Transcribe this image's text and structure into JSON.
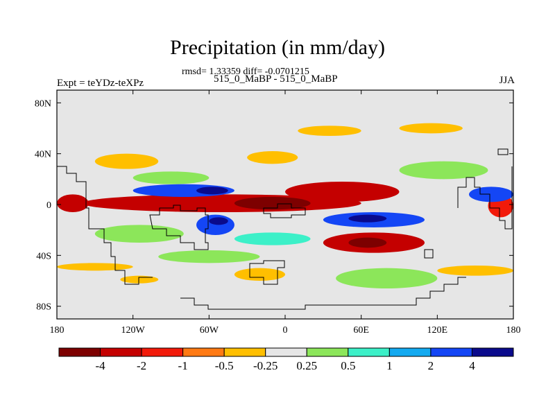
{
  "chart_data": {
    "type": "heatmap",
    "title": "Precipitation (in mm/day)",
    "stats_line": "rmsd= 1.33359 diff= -0.0701215",
    "subtitle": "515_0_MaBP - 515_0_MaBP",
    "left_label": "Expt = teYDz-teXPz",
    "right_label": "JJA",
    "x_axis": {
      "range": [
        -180,
        180
      ],
      "ticks": [
        -180,
        -120,
        -60,
        0,
        60,
        120,
        180
      ],
      "tick_labels": [
        "180",
        "120W",
        "60W",
        "0",
        "60E",
        "120E",
        "180"
      ]
    },
    "y_axis": {
      "range": [
        -90,
        90
      ],
      "ticks": [
        80,
        40,
        0,
        -40,
        -80
      ],
      "tick_labels": [
        "80N",
        "40N",
        "0",
        "40S",
        "80S"
      ]
    },
    "colorbar": {
      "labels": [
        "-4",
        "-2",
        "-1",
        "-0.5",
        "-0.25",
        "0.25",
        "0.5",
        "1",
        "2",
        "4"
      ],
      "colors": [
        "#7d0000",
        "#c40000",
        "#f21a0a",
        "#ff7a14",
        "#ffbf00",
        "#e6e6e6",
        "#8ce65a",
        "#3cf0c8",
        "#14aaf0",
        "#1446f5",
        "#0a0a8c"
      ]
    },
    "background_color": "#e6e6e6",
    "regions": [
      {
        "name": "tropical-band-dry",
        "bin": 1,
        "lon": [
          -160,
          60
        ],
        "lat": [
          -6,
          8
        ]
      },
      {
        "name": "central-band-very-dry",
        "bin": 0,
        "lon": [
          -40,
          20
        ],
        "lat": [
          -4,
          6
        ]
      },
      {
        "name": "east-band-dry",
        "bin": 1,
        "lon": [
          0,
          90
        ],
        "lat": [
          2,
          18
        ]
      },
      {
        "name": "far-east-dry",
        "bin": 2,
        "lon": [
          160,
          180
        ],
        "lat": [
          -10,
          8
        ]
      },
      {
        "name": "west-tropic-dry",
        "bin": 1,
        "lon": [
          -180,
          -155
        ],
        "lat": [
          -6,
          8
        ]
      },
      {
        "name": "north-wet-band",
        "bin": 9,
        "lon": [
          -120,
          -40
        ],
        "lat": [
          6,
          16
        ]
      },
      {
        "name": "north-very-wet",
        "bin": 10,
        "lon": [
          -70,
          -45
        ],
        "lat": [
          8,
          14
        ]
      },
      {
        "name": "south-wet-band",
        "bin": 9,
        "lon": [
          -70,
          -40
        ],
        "lat": [
          -24,
          -8
        ]
      },
      {
        "name": "south-very-wet",
        "bin": 10,
        "lon": [
          -60,
          -45
        ],
        "lat": [
          -16,
          -10
        ]
      },
      {
        "name": "indian-wet-band",
        "bin": 9,
        "lon": [
          30,
          110
        ],
        "lat": [
          -18,
          -6
        ]
      },
      {
        "name": "indian-very-wet",
        "bin": 10,
        "lon": [
          50,
          80
        ],
        "lat": [
          -14,
          -8
        ]
      },
      {
        "name": "east-wet",
        "bin": 9,
        "lon": [
          145,
          180
        ],
        "lat": [
          2,
          14
        ]
      },
      {
        "name": "southern-dry-patch",
        "bin": 1,
        "lon": [
          30,
          110
        ],
        "lat": [
          -38,
          -22
        ]
      },
      {
        "name": "southern-very-dry",
        "bin": 0,
        "lon": [
          50,
          80
        ],
        "lat": [
          -34,
          -26
        ]
      },
      {
        "name": "north-orange-1",
        "bin": 4,
        "lon": [
          -150,
          -100
        ],
        "lat": [
          28,
          40
        ]
      },
      {
        "name": "north-orange-2",
        "bin": 4,
        "lon": [
          -30,
          10
        ],
        "lat": [
          32,
          42
        ]
      },
      {
        "name": "north-orange-3",
        "bin": 4,
        "lon": [
          10,
          60
        ],
        "lat": [
          54,
          62
        ]
      },
      {
        "name": "north-orange-4",
        "bin": 4,
        "lon": [
          90,
          140
        ],
        "lat": [
          56,
          64
        ]
      },
      {
        "name": "south-orange-1",
        "bin": 4,
        "lon": [
          -180,
          -120
        ],
        "lat": [
          -52,
          -46
        ]
      },
      {
        "name": "south-orange-2",
        "bin": 4,
        "lon": [
          -130,
          -100
        ],
        "lat": [
          -62,
          -56
        ]
      },
      {
        "name": "south-orange-3",
        "bin": 4,
        "lon": [
          -40,
          0
        ],
        "lat": [
          -60,
          -50
        ]
      },
      {
        "name": "south-orange-4",
        "bin": 4,
        "lon": [
          120,
          180
        ],
        "lat": [
          -56,
          -48
        ]
      },
      {
        "name": "green-north-1",
        "bin": 6,
        "lon": [
          -120,
          -60
        ],
        "lat": [
          16,
          26
        ]
      },
      {
        "name": "green-north-2",
        "bin": 6,
        "lon": [
          90,
          160
        ],
        "lat": [
          20,
          34
        ]
      },
      {
        "name": "green-south-1",
        "bin": 6,
        "lon": [
          -150,
          -80
        ],
        "lat": [
          -30,
          -16
        ]
      },
      {
        "name": "green-south-2",
        "bin": 6,
        "lon": [
          -100,
          -20
        ],
        "lat": [
          -46,
          -36
        ]
      },
      {
        "name": "green-south-3",
        "bin": 6,
        "lon": [
          40,
          120
        ],
        "lat": [
          -66,
          -50
        ]
      },
      {
        "name": "teal-south",
        "bin": 7,
        "lon": [
          -40,
          20
        ],
        "lat": [
          -32,
          -22
        ]
      }
    ]
  }
}
